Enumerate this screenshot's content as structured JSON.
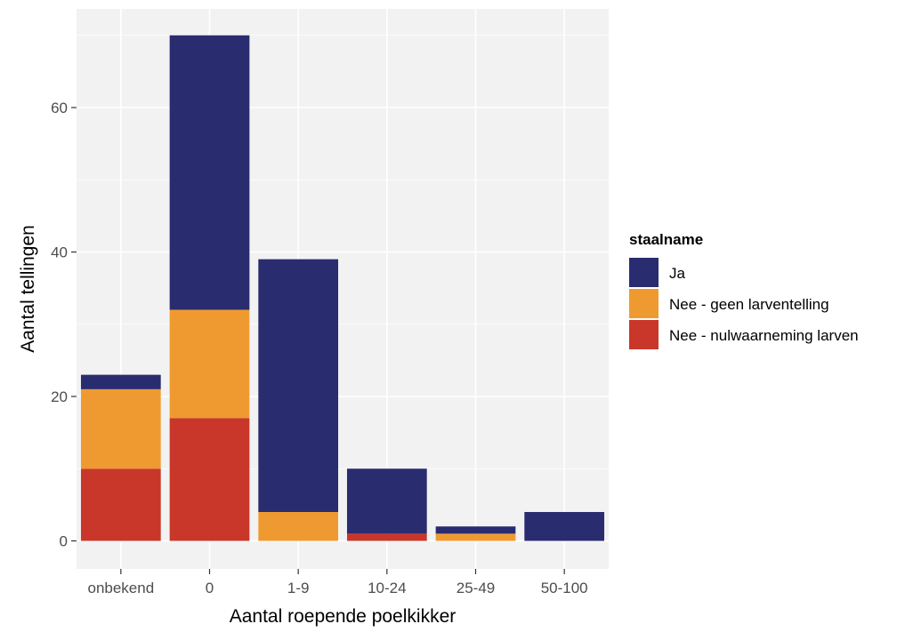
{
  "chart_data": {
    "type": "bar",
    "stacked": true,
    "title": "",
    "xlabel": "Aantal roepende poelkikker",
    "ylabel": "Aantal tellingen",
    "categories": [
      "onbekend",
      "0",
      "1-9",
      "10-24",
      "25-49",
      "50-100"
    ],
    "ylim": [
      0,
      70
    ],
    "yticks": [
      0,
      20,
      40,
      60
    ],
    "grid": true,
    "legend_position": "right",
    "legend_title": "staalname",
    "series": [
      {
        "name": "Nee - nulwaarneming larven",
        "color": "#c8372a",
        "values": [
          10,
          17,
          0,
          1,
          0,
          0
        ]
      },
      {
        "name": "Nee - geen larventelling",
        "color": "#ef9a31",
        "values": [
          11,
          15,
          4,
          0,
          1,
          0
        ]
      },
      {
        "name": "Ja",
        "color": "#2a2c70",
        "values": [
          2,
          38,
          35,
          9,
          1,
          4
        ]
      }
    ],
    "legend_order": [
      "Ja",
      "Nee - geen larventelling",
      "Nee - nulwaarneming larven"
    ]
  }
}
